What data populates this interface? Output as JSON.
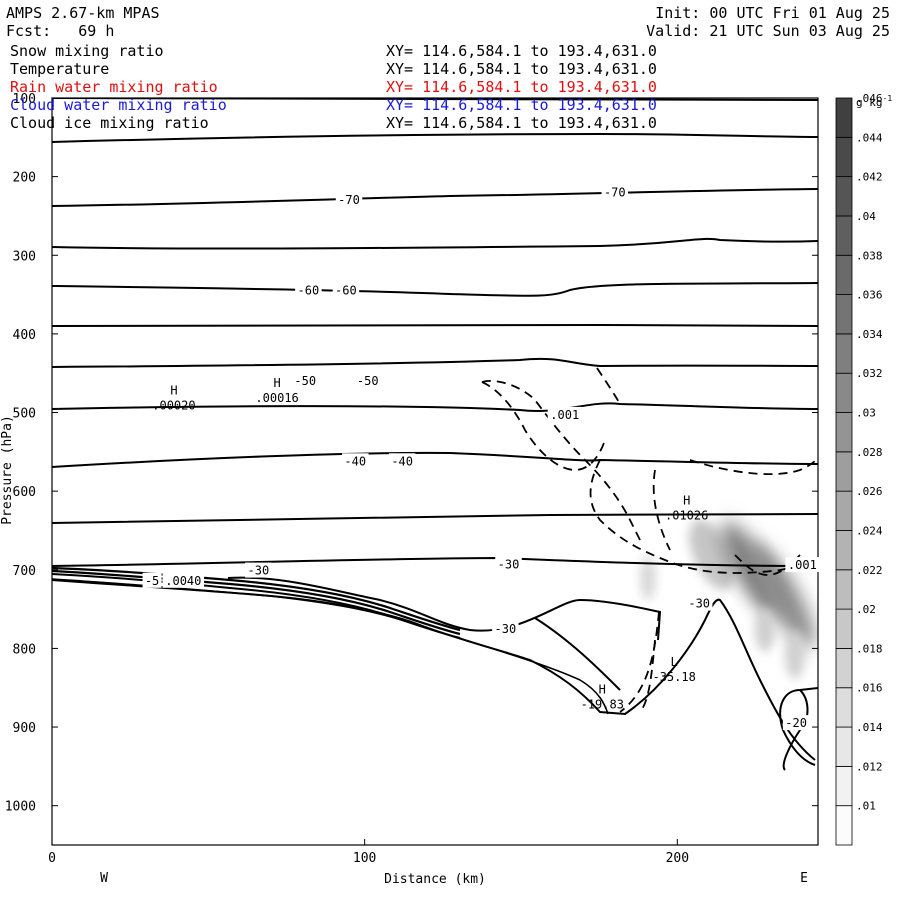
{
  "header": {
    "model": "AMPS 2.67-km MPAS",
    "fcst_label": "Fcst:",
    "fcst_value": "69 h",
    "init": "Init: 00 UTC Fri 01 Aug 25",
    "valid": "Valid: 21 UTC Sun 03 Aug 25"
  },
  "fields": [
    {
      "name": "Snow mixing ratio",
      "xy": "XY= 114.6,584.1 to 193.4,631.0",
      "color": "#000000"
    },
    {
      "name": "Temperature",
      "xy": "XY= 114.6,584.1 to 193.4,631.0",
      "color": "#000000"
    },
    {
      "name": "Rain water mixing ratio",
      "xy": "XY= 114.6,584.1 to 193.4,631.0",
      "color": "#e01010"
    },
    {
      "name": "Cloud water mixing ratio",
      "xy": "XY= 114.6,584.1 to 193.4,631.0",
      "color": "#1a1adc"
    },
    {
      "name": "Cloud ice mixing ratio",
      "xy": "XY= 114.6,584.1 to 193.4,631.0",
      "color": "#000000"
    }
  ],
  "chart_data": {
    "type": "contour",
    "xlabel": "Distance (km)",
    "ylabel": "Pressure (hPa)",
    "xlim": [
      0,
      245
    ],
    "ylim": [
      1050,
      100
    ],
    "x_ticks": [
      "0",
      "100",
      "200"
    ],
    "x_tick_values": [
      0,
      100,
      200
    ],
    "y_ticks": [
      "100",
      "200",
      "300",
      "400",
      "500",
      "600",
      "700",
      "800",
      "900",
      "1000"
    ],
    "y_tick_values": [
      100,
      200,
      300,
      400,
      500,
      600,
      700,
      800,
      900,
      1000
    ],
    "x_end_labels": {
      "west": "W",
      "east": "E"
    },
    "colorbar": {
      "units": "g kg-1",
      "labels": [
        ".01",
        ".012",
        ".014",
        ".016",
        ".018",
        ".02",
        ".022",
        ".024",
        ".026",
        ".028",
        ".03",
        ".032",
        ".034",
        ".036",
        ".038",
        ".04",
        ".042",
        ".044",
        ".046"
      ]
    },
    "contour_labels": [
      {
        "text": "-70",
        "x": 95,
        "p": 230
      },
      {
        "text": "-70",
        "x": 180,
        "p": 220
      },
      {
        "text": "-60",
        "x": 82,
        "p": 345
      },
      {
        "text": "-60",
        "x": 94,
        "p": 345
      },
      {
        "text": "-50",
        "x": 81,
        "p": 460
      },
      {
        "text": "-50",
        "x": 101,
        "p": 460
      },
      {
        "text": "-40",
        "x": 97,
        "p": 562
      },
      {
        "text": "-40",
        "x": 112,
        "p": 562
      },
      {
        "text": "-30",
        "x": 146,
        "p": 693
      },
      {
        "text": "-30",
        "x": 66,
        "p": 701
      },
      {
        "text": "-30",
        "x": 145,
        "p": 775
      },
      {
        "text": "-30",
        "x": 207,
        "p": 743
      },
      {
        "text": "-20",
        "x": 238,
        "p": 895
      },
      {
        "text": ".001",
        "x": 164,
        "p": 503
      },
      {
        "text": ".001",
        "x": 240,
        "p": 694
      },
      {
        "text": "-5",
        "x": 32,
        "p": 714
      },
      {
        "text": ".0040",
        "x": 42,
        "p": 714
      }
    ],
    "extrema": [
      {
        "kind": "H",
        "value": ".00020",
        "x": 39,
        "p": 490
      },
      {
        "kind": "H",
        "value": ".00016",
        "x": 72,
        "p": 480
      },
      {
        "kind": "H",
        "value": ".01026",
        "x": 203,
        "p": 630
      },
      {
        "kind": "L",
        "value": "-35.18",
        "x": 199,
        "p": 835
      },
      {
        "kind": "H",
        "value": "-19.83",
        "x": 176,
        "p": 870
      }
    ]
  }
}
